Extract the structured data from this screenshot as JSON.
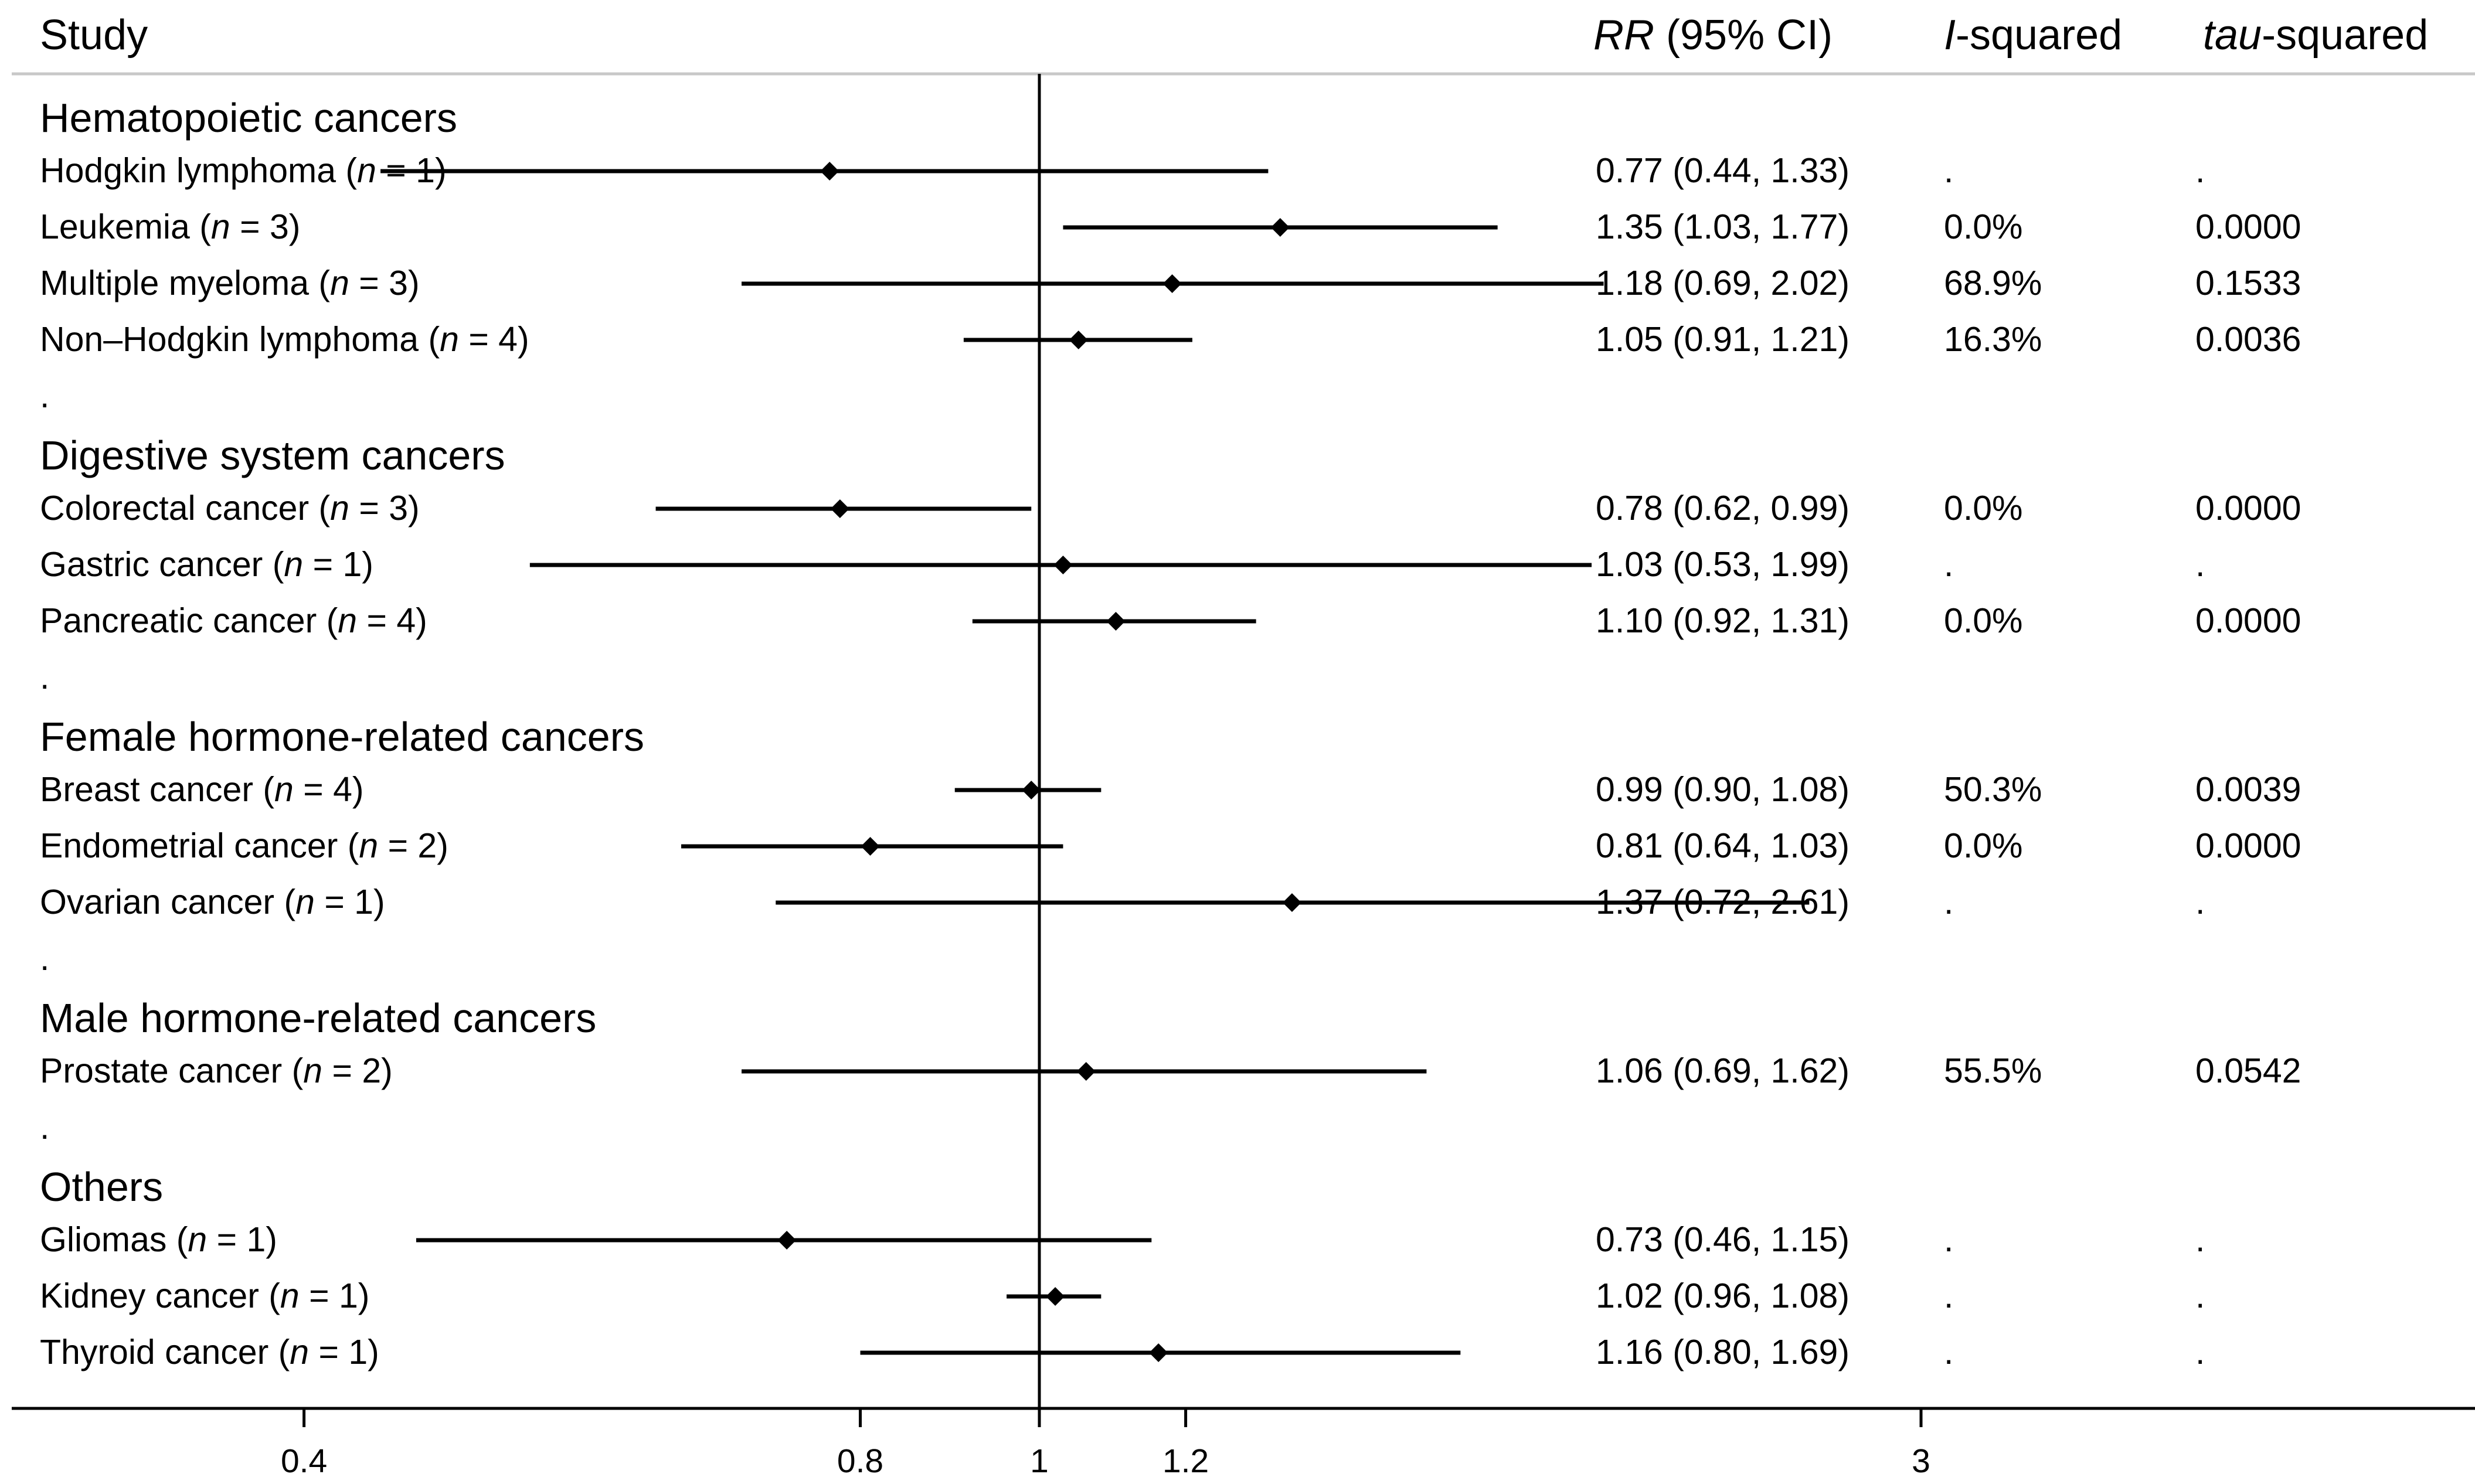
{
  "chart_data": {
    "type": "forest",
    "scale": "log",
    "reference_line": 1,
    "x_ticks": [
      "0.4",
      "0.8",
      "1",
      "1.2",
      "3"
    ],
    "headers": {
      "study": "Study",
      "rr_italic": "RR",
      "rr_rest": " (95% CI)",
      "i2_italic": "I",
      "i2_rest": "-squared",
      "tau_italic": "tau",
      "tau_rest": "-squared"
    },
    "groups": [
      {
        "name": "Hematopoietic cancers",
        "rows": [
          {
            "label": "Hodgkin lymphoma",
            "n": "1",
            "rr": 0.77,
            "lo": 0.44,
            "hi": 1.33,
            "ci_text": "0.77 (0.44, 1.33)",
            "i2": ".",
            "tau2": "."
          },
          {
            "label": "Leukemia",
            "n": "3",
            "rr": 1.35,
            "lo": 1.03,
            "hi": 1.77,
            "ci_text": "1.35 (1.03, 1.77)",
            "i2": "0.0%",
            "tau2": "0.0000"
          },
          {
            "label": "Multiple myeloma",
            "n": "3",
            "rr": 1.18,
            "lo": 0.69,
            "hi": 2.02,
            "ci_text": "1.18 (0.69, 2.02)",
            "i2": "68.9%",
            "tau2": "0.1533"
          },
          {
            "label": "Non–Hodgkin lymphoma",
            "n": "4",
            "rr": 1.05,
            "lo": 0.91,
            "hi": 1.21,
            "ci_text": "1.05 (0.91, 1.21)",
            "i2": "16.3%",
            "tau2": "0.0036"
          }
        ]
      },
      {
        "name": "Digestive system cancers",
        "rows": [
          {
            "label": "Colorectal cancer",
            "n": "3",
            "rr": 0.78,
            "lo": 0.62,
            "hi": 0.99,
            "ci_text": "0.78 (0.62, 0.99)",
            "i2": "0.0%",
            "tau2": "0.0000"
          },
          {
            "label": "Gastric cancer",
            "n": "1",
            "rr": 1.03,
            "lo": 0.53,
            "hi": 1.99,
            "ci_text": "1.03 (0.53, 1.99)",
            "i2": ".",
            "tau2": "."
          },
          {
            "label": "Pancreatic cancer",
            "n": "4",
            "rr": 1.1,
            "lo": 0.92,
            "hi": 1.31,
            "ci_text": "1.10 (0.92, 1.31)",
            "i2": "0.0%",
            "tau2": "0.0000"
          }
        ]
      },
      {
        "name": "Female hormone-related cancers",
        "rows": [
          {
            "label": "Breast cancer",
            "n": "4",
            "rr": 0.99,
            "lo": 0.9,
            "hi": 1.08,
            "ci_text": "0.99 (0.90, 1.08)",
            "i2": "50.3%",
            "tau2": "0.0039"
          },
          {
            "label": "Endometrial cancer",
            "n": "2",
            "rr": 0.81,
            "lo": 0.64,
            "hi": 1.03,
            "ci_text": "0.81 (0.64, 1.03)",
            "i2": "0.0%",
            "tau2": "0.0000"
          },
          {
            "label": "Ovarian cancer",
            "n": "1",
            "rr": 1.37,
            "lo": 0.72,
            "hi": 2.61,
            "ci_text": "1.37 (0.72, 2.61)",
            "i2": ".",
            "tau2": "."
          }
        ]
      },
      {
        "name": "Male hormone-related cancers",
        "rows": [
          {
            "label": "Prostate cancer",
            "n": "2",
            "rr": 1.06,
            "lo": 0.69,
            "hi": 1.62,
            "ci_text": "1.06 (0.69, 1.62)",
            "i2": "55.5%",
            "tau2": "0.0542"
          }
        ]
      },
      {
        "name": "Others",
        "rows": [
          {
            "label": "Gliomas",
            "n": "1",
            "rr": 0.73,
            "lo": 0.46,
            "hi": 1.15,
            "ci_text": "0.73 (0.46, 1.15)",
            "i2": ".",
            "tau2": "."
          },
          {
            "label": "Kidney cancer",
            "n": "1",
            "rr": 1.02,
            "lo": 0.96,
            "hi": 1.08,
            "ci_text": "1.02 (0.96, 1.08)",
            "i2": ".",
            "tau2": "."
          },
          {
            "label": "Thyroid cancer",
            "n": "1",
            "rr": 1.16,
            "lo": 0.8,
            "hi": 1.69,
            "ci_text": "1.16 (0.80, 1.69)",
            "i2": ".",
            "tau2": "."
          }
        ]
      }
    ],
    "spacer_text": "."
  }
}
